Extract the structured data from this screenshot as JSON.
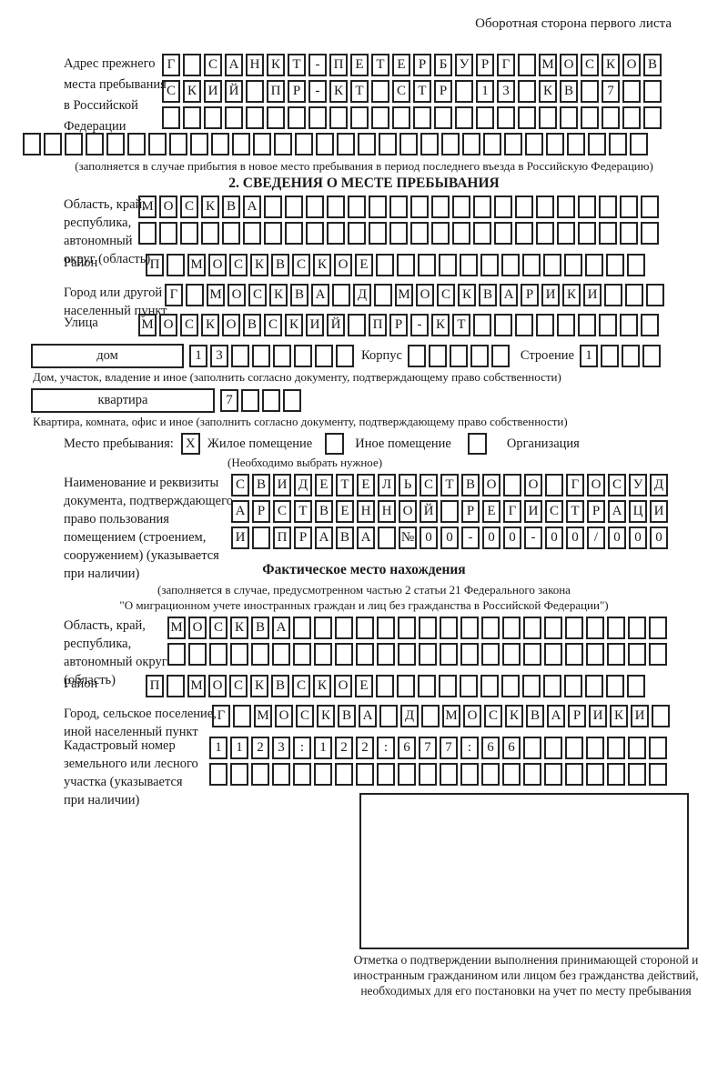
{
  "header": {
    "back_side_note": "Оборотная сторона первого листа"
  },
  "colors": {
    "ink": "#1a1a1a",
    "box_border": "#222222"
  },
  "section1": {
    "label": "Адрес прежнего\nместа пребывания\nв Российской\nФедерации",
    "rows": [
      {
        "text": "Г САНКТ-ПЕТЕРБУРГ МОСКОВ",
        "len": 24
      },
      {
        "text": "СКИЙ ПР-КТ СТР 13 КВ 7",
        "len": 24
      },
      {
        "text": "",
        "len": 24
      },
      {
        "text": "",
        "len": 30
      }
    ],
    "note": "(заполняется в случае прибытия в новое место пребывания в период последнего въезда в Российскую Федерацию)"
  },
  "section2": {
    "title": "2. СВЕДЕНИЯ О МЕСТЕ ПРЕБЫВАНИЯ",
    "region": {
      "label": "Область, край,\nреспублика,\nавтономный\nокруг (область)",
      "rows": [
        {
          "text": "МОСКВА",
          "len": 25
        },
        {
          "text": "",
          "len": 25
        }
      ]
    },
    "district": {
      "label": "Район",
      "row": {
        "text": "П МОСКВСКОЕ",
        "len": 24
      }
    },
    "city": {
      "label": "Город или другой\nнаселенный пункт",
      "row": {
        "text": "Г МОСКВА Д МОСКВАРИКИ",
        "len": 24
      }
    },
    "street": {
      "label": "Улица",
      "row": {
        "text": "МОСКОВСКИЙ ПР-КТ",
        "len": 25
      }
    },
    "house": {
      "box_label": "дом",
      "house_row": {
        "text": "13",
        "len": 8
      },
      "korpus_label": "Корпус",
      "korpus_row": {
        "text": "",
        "len": 5
      },
      "stroenie_label": "Строение",
      "stroenie_row": {
        "text": "1",
        "len": 4
      },
      "caption": "Дом, участок, владение и иное (заполнить согласно документу, подтверждающему право собственности)"
    },
    "apartment": {
      "box_label": "квартира",
      "row": {
        "text": "7",
        "len": 4
      },
      "caption": "Квартира, комната, офис и иное (заполнить согласно документу, подтверждающему право собственности)"
    },
    "stay_type": {
      "label": "Место пребывания:",
      "options": [
        {
          "label": "Жилое помещение",
          "box": {
            "text": "X",
            "len": 1
          }
        },
        {
          "label": "Иное помещение",
          "box": {
            "text": "",
            "len": 1
          }
        },
        {
          "label": "Организация",
          "box": {
            "text": "",
            "len": 1
          }
        }
      ],
      "hint": "(Необходимо выбрать нужное)"
    },
    "document": {
      "label": "Наименование и реквизиты\nдокумента, подтверждающего\nправо пользования\nпомещением (строением,\nсооружением) (указывается\nпри наличии)",
      "rows": [
        {
          "text": "СВИДЕТЕЛЬСТВО О ГОСУД",
          "len": 21
        },
        {
          "text": "АРСТВЕННОЙ РЕГИСТРАЦИ",
          "len": 21
        },
        {
          "text": "И ПРАВА №00-00-00/000",
          "len": 21
        }
      ]
    }
  },
  "section3": {
    "title": "Фактическое место нахождения",
    "note_line1": "(заполняется в случае, предусмотренном частью 2 статьи 21 Федерального закона",
    "note_line2": "\"О миграционном учете иностранных граждан и лиц без гражданства в Российской Федерации\")",
    "region": {
      "label": "Область, край,\nреспублика,\nавтономный округ\n(область)",
      "rows": [
        {
          "text": "МОСКВА",
          "len": 24
        },
        {
          "text": "",
          "len": 24
        }
      ]
    },
    "district": {
      "label": "Район",
      "row": {
        "text": "П МОСКВСКОЕ",
        "len": 24
      }
    },
    "city": {
      "label": "Город, сельское поселение,\nиной населенный пункт",
      "row": {
        "text": "Г МОСКВА Д МОСКВАРИКИ",
        "len": 22
      }
    },
    "cadastral": {
      "label": "Кадастровый номер\nземельного или лесного\nучастка (указывается\nпри наличии)",
      "rows": [
        {
          "text": "1123:122:677:66",
          "len": 22
        },
        {
          "text": "",
          "len": 22
        }
      ]
    },
    "stamp_caption": "Отметка о подтверждении выполнения принимающей стороной и иностранным гражданином или лицом без гражданства действий, необходимых для его постановки на учет по месту пребывания"
  }
}
